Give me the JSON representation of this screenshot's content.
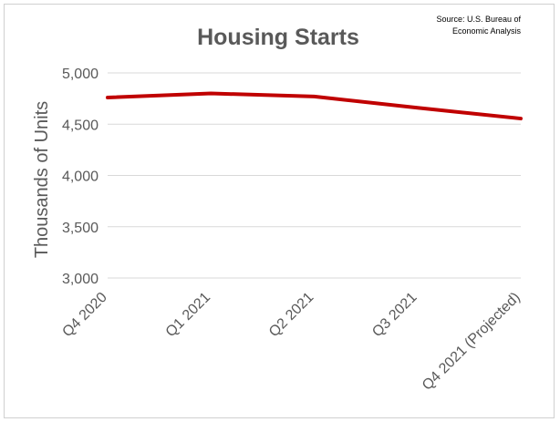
{
  "chart_data": {
    "type": "line",
    "title": "Housing Starts",
    "source_lines": [
      "Source: U.S. Bureau of",
      "Economic Analysis"
    ],
    "xlabel": "",
    "ylabel": "Thousands of Units",
    "categories": [
      "Q4 2020",
      "Q1 2021",
      "Q2 2021",
      "Q3 2021",
      "Q4 2021 (Projected)"
    ],
    "series": [
      {
        "values": [
          4760,
          4800,
          4770,
          4660,
          4555
        ],
        "color": "#c00000"
      }
    ],
    "ylim": [
      3000,
      5000
    ],
    "yticks": [
      3000,
      3500,
      4000,
      4500,
      5000
    ],
    "ytick_labels": [
      "3,000",
      "3,500",
      "4,000",
      "4,500",
      "5,000"
    ],
    "grid": true,
    "legend": "none"
  }
}
